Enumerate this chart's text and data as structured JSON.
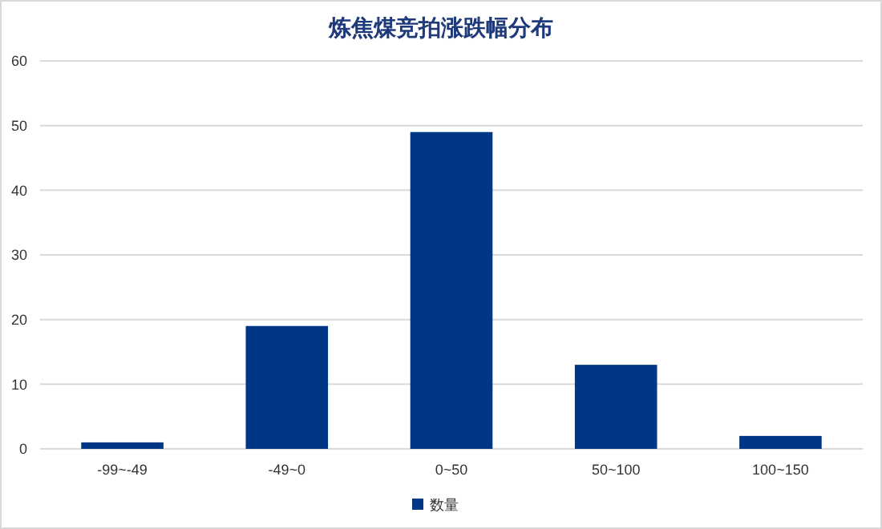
{
  "chart_data": {
    "type": "bar",
    "title": "炼焦煤竞拍涨跌幅分布",
    "categories": [
      "-99~-49",
      "-49~0",
      "0~50",
      "50~100",
      "100~150"
    ],
    "series": [
      {
        "name": "数量",
        "color": "#003686",
        "values": [
          1,
          19,
          49,
          13,
          2
        ]
      }
    ],
    "ylim": [
      0,
      60
    ],
    "yticks": [
      0,
      10,
      20,
      30,
      40,
      50,
      60
    ],
    "grid": "y",
    "legend": "bottom"
  }
}
